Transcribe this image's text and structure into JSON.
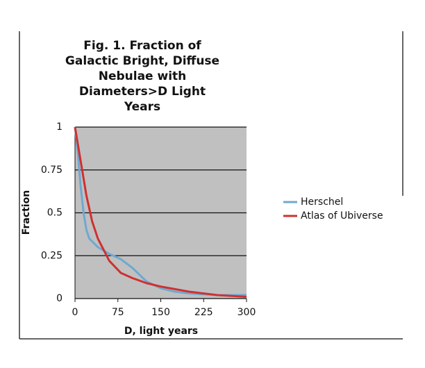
{
  "chart_data": {
    "type": "line",
    "title": [
      "Fig. 1. Fraction of",
      "Galactic Bright, Diffuse",
      "Nebulae with",
      "Diameters>D Light",
      "Years"
    ],
    "x_label": "D, light years",
    "y_label": "Fraction",
    "xlim": [
      0,
      300
    ],
    "xticks": [
      0,
      75,
      150,
      225,
      300
    ],
    "ylim": [
      0,
      1
    ],
    "yticks": [
      0,
      0.25,
      0.5,
      0.75,
      1
    ],
    "grid": true,
    "series": [
      {
        "name": "Herschel",
        "color": "#6fa8d0",
        "x": [
          0,
          5,
          10,
          15,
          20,
          25,
          40,
          60,
          80,
          100,
          125,
          150,
          175,
          200,
          250,
          300
        ],
        "values": [
          1,
          0.85,
          0.65,
          0.5,
          0.4,
          0.35,
          0.3,
          0.26,
          0.23,
          0.18,
          0.1,
          0.06,
          0.04,
          0.03,
          0.02,
          0.02
        ]
      },
      {
        "name": "Atlas of Ubiverse",
        "color": "#d03030",
        "x": [
          0,
          10,
          20,
          30,
          40,
          60,
          80,
          100,
          125,
          150,
          200,
          250,
          300
        ],
        "values": [
          1,
          0.8,
          0.6,
          0.45,
          0.35,
          0.22,
          0.15,
          0.12,
          0.09,
          0.07,
          0.04,
          0.02,
          0.01
        ]
      }
    ]
  }
}
